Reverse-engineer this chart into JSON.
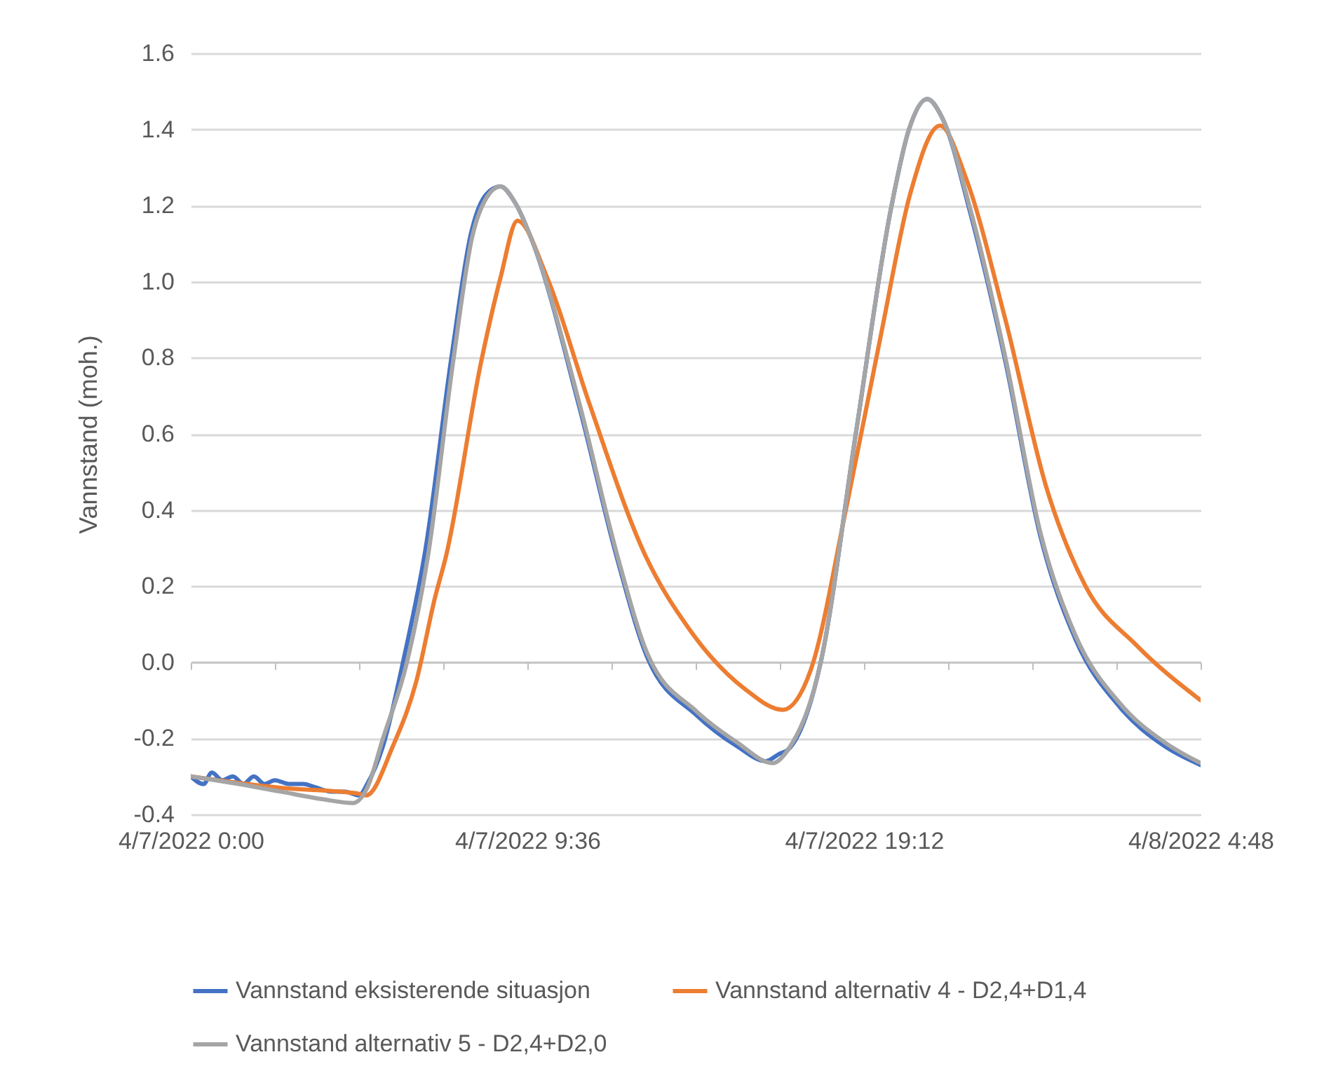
{
  "chart_data": {
    "type": "line",
    "ylabel": "Vannstand (moh.)",
    "xlim": [
      "2022-04-07T00:00",
      "2022-04-08T04:48"
    ],
    "xticks": [
      {
        "value": "2022-04-07T00:00",
        "label": "4/7/2022 0:00"
      },
      {
        "value": "2022-04-07T02:24",
        "label": null
      },
      {
        "value": "2022-04-07T04:48",
        "label": null
      },
      {
        "value": "2022-04-07T07:12",
        "label": null
      },
      {
        "value": "2022-04-07T09:36",
        "label": "4/7/2022 9:36"
      },
      {
        "value": "2022-04-07T12:00",
        "label": null
      },
      {
        "value": "2022-04-07T14:24",
        "label": null
      },
      {
        "value": "2022-04-07T16:48",
        "label": null
      },
      {
        "value": "2022-04-07T19:12",
        "label": "4/7/2022 19:12"
      },
      {
        "value": "2022-04-07T21:36",
        "label": null
      },
      {
        "value": "2022-04-08T00:00",
        "label": null
      },
      {
        "value": "2022-04-08T02:24",
        "label": null
      },
      {
        "value": "2022-04-08T04:48",
        "label": "4/8/2022 4:48"
      }
    ],
    "ylim": [
      -0.4,
      1.6
    ],
    "yticks": [
      {
        "value": -0.4,
        "label": "-0.4"
      },
      {
        "value": -0.2,
        "label": "-0.2"
      },
      {
        "value": 0,
        "label": "0.0"
      },
      {
        "value": 0.2,
        "label": "0.2"
      },
      {
        "value": 0.4,
        "label": "0.4"
      },
      {
        "value": 0.6,
        "label": "0.6"
      },
      {
        "value": 0.8,
        "label": "0.8"
      },
      {
        "value": 1,
        "label": "1.0"
      },
      {
        "value": 1.2,
        "label": "1.2"
      },
      {
        "value": 1.4,
        "label": "1.4"
      },
      {
        "value": 1.6,
        "label": "1.6"
      }
    ],
    "grid": "y",
    "legend": "bottom",
    "marker": "none",
    "line_style": "solid",
    "series": [
      {
        "name": "Vannstand eksisterende situasjon",
        "color": "#4472c4",
        "x": [
          "2022-04-07T00:00",
          "2022-04-07T00:22",
          "2022-04-07T00:36",
          "2022-04-07T00:54",
          "2022-04-07T01:12",
          "2022-04-07T01:30",
          "2022-04-07T01:48",
          "2022-04-07T02:06",
          "2022-04-07T02:24",
          "2022-04-07T02:48",
          "2022-04-07T03:12",
          "2022-04-07T03:36",
          "2022-04-07T04:00",
          "2022-04-07T04:24",
          "2022-04-07T04:48",
          "2022-04-07T05:02",
          "2022-04-07T05:29",
          "2022-04-07T06:06",
          "2022-04-07T06:42",
          "2022-04-07T07:26",
          "2022-04-07T08:00",
          "2022-04-07T08:26",
          "2022-04-07T08:50",
          "2022-04-07T09:14",
          "2022-04-07T09:46",
          "2022-04-07T11:05",
          "2022-04-07T12:10",
          "2022-04-07T13:02",
          "2022-04-07T14:26",
          "2022-04-07T15:34",
          "2022-04-07T16:24",
          "2022-04-07T16:48",
          "2022-04-07T17:02",
          "2022-04-07T17:58",
          "2022-04-07T18:58",
          "2022-04-07T19:58",
          "2022-04-07T20:29",
          "2022-04-07T21:00",
          "2022-04-07T21:26",
          "2022-04-07T22:14",
          "2022-04-07T23:14",
          "2022-04-08T00:14",
          "2022-04-08T01:14",
          "2022-04-08T02:31",
          "2022-04-08T03:46",
          "2022-04-08T04:48"
        ],
        "values": [
          -0.3,
          -0.32,
          -0.29,
          -0.31,
          -0.3,
          -0.32,
          -0.3,
          -0.32,
          -0.31,
          -0.32,
          -0.32,
          -0.33,
          -0.34,
          -0.34,
          -0.35,
          -0.32,
          -0.22,
          0.02,
          0.3,
          0.8,
          1.13,
          1.23,
          1.25,
          1.21,
          1.1,
          0.67,
          0.27,
          0.01,
          -0.14,
          -0.22,
          -0.26,
          -0.24,
          -0.23,
          0.0,
          0.6,
          1.19,
          1.4,
          1.48,
          1.43,
          1.18,
          0.79,
          0.33,
          0.06,
          -0.12,
          -0.22,
          -0.27
        ]
      },
      {
        "name": "Vannstand alternativ 4 - D2,4+D1,4",
        "color": "#ed7d31",
        "x": [
          "2022-04-07T00:00",
          "2022-04-07T02:34",
          "2022-04-07T04:46",
          "2022-04-07T05:00",
          "2022-04-07T05:46",
          "2022-04-07T06:26",
          "2022-04-07T06:58",
          "2022-04-07T07:17",
          "2022-04-07T08:17",
          "2022-04-07T08:50",
          "2022-04-07T09:19",
          "2022-04-07T10:10",
          "2022-04-07T11:22",
          "2022-04-07T12:58",
          "2022-04-07T14:14",
          "2022-04-07T15:48",
          "2022-04-07T16:53",
          "2022-04-07T17:41",
          "2022-04-07T18:41",
          "2022-04-07T19:41",
          "2022-04-07T20:31",
          "2022-04-07T21:22",
          "2022-04-07T22:07",
          "2022-04-07T23:14",
          "2022-04-08T00:24",
          "2022-04-08T01:31",
          "2022-04-08T02:58",
          "2022-04-08T04:48"
        ],
        "values": [
          -0.3,
          -0.33,
          -0.345,
          -0.35,
          -0.22,
          -0.05,
          0.17,
          0.28,
          0.79,
          1.01,
          1.16,
          1.01,
          0.68,
          0.28,
          0.085,
          -0.07,
          -0.125,
          -0.02,
          0.4,
          0.86,
          1.23,
          1.41,
          1.27,
          0.9,
          0.46,
          0.2,
          0.045,
          -0.1
        ]
      },
      {
        "name": "Vannstand alternativ 5 - D2,4+D2,0",
        "color": "#a5a5a5",
        "x": [
          "2022-04-07T00:00",
          "2022-04-07T01:22",
          "2022-04-07T02:34",
          "2022-04-07T03:46",
          "2022-04-07T04:38",
          "2022-04-07T05:02",
          "2022-04-07T05:29",
          "2022-04-07T06:10",
          "2022-04-07T06:46",
          "2022-04-07T07:29",
          "2022-04-07T08:02",
          "2022-04-07T08:26",
          "2022-04-07T08:50",
          "2022-04-07T09:14",
          "2022-04-07T09:46",
          "2022-04-07T11:05",
          "2022-04-07T12:10",
          "2022-04-07T13:02",
          "2022-04-07T14:26",
          "2022-04-07T15:34",
          "2022-04-07T16:36",
          "2022-04-07T17:02",
          "2022-04-07T17:58",
          "2022-04-07T18:58",
          "2022-04-07T19:58",
          "2022-04-07T20:29",
          "2022-04-07T21:00",
          "2022-04-07T21:26",
          "2022-04-07T22:14",
          "2022-04-07T23:14",
          "2022-04-08T00:14",
          "2022-04-08T01:14",
          "2022-04-08T02:31",
          "2022-04-08T03:46",
          "2022-04-08T04:48"
        ],
        "values": [
          -0.3,
          -0.32,
          -0.34,
          -0.36,
          -0.37,
          -0.33,
          -0.2,
          0.0,
          0.28,
          0.79,
          1.12,
          1.22,
          1.25,
          1.21,
          1.1,
          0.68,
          0.28,
          0.02,
          -0.13,
          -0.21,
          -0.265,
          -0.23,
          0.0,
          0.6,
          1.19,
          1.4,
          1.48,
          1.43,
          1.19,
          0.8,
          0.34,
          0.07,
          -0.11,
          -0.21,
          -0.265
        ]
      }
    ]
  }
}
